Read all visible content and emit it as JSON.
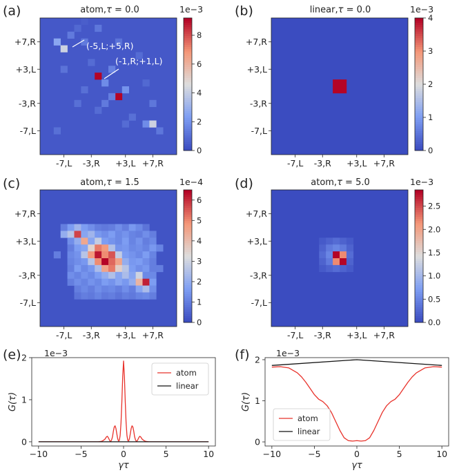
{
  "panels": {
    "a": {
      "label": "(a)",
      "title_prefix": "atom,",
      "tau_symbol": "τ",
      "title_value": " = 0.0",
      "exponent": "1e−3"
    },
    "b": {
      "label": "(b)",
      "title_prefix": "linear,",
      "tau_symbol": "τ",
      "title_value": " = 0.0",
      "exponent": "1e−3"
    },
    "c": {
      "label": "(c)",
      "title_prefix": "atom,",
      "tau_symbol": "τ",
      "title_value": " = 1.5",
      "exponent": "1e−4"
    },
    "d": {
      "label": "(d)",
      "title_prefix": "atom,",
      "tau_symbol": "τ",
      "title_value": " = 5.0",
      "exponent": "1e−3"
    },
    "e": {
      "label": "(e)",
      "exponent": "1e−3"
    },
    "f": {
      "label": "(f)",
      "exponent": "1e−3"
    }
  },
  "annotations": {
    "a1": "(-5,L;+5,R)",
    "a2": "(-1,R;+1,L)"
  },
  "heatmap_ticks": {
    "x": [
      "-7,L",
      "-3,R",
      "+3,L",
      "+7,R"
    ],
    "y": [
      "+7,R",
      "+3,L",
      "-3,R",
      "-7,L"
    ]
  },
  "colorbar_ticks": {
    "a": [
      "0",
      "2",
      "4",
      "6",
      "8"
    ],
    "b": [
      "0",
      "1",
      "2",
      "3",
      "4"
    ],
    "c": [
      "0",
      "1",
      "2",
      "3",
      "4",
      "5",
      "6"
    ],
    "d": [
      "0.0",
      "0.5",
      "1.0",
      "1.5",
      "2.0",
      "2.5"
    ]
  },
  "line_axes": {
    "x_ticks": [
      "−10",
      "−5",
      "0",
      "5",
      "10"
    ],
    "y_ticks_e": [
      "0",
      "1",
      "2"
    ],
    "y_ticks_f": [
      "0",
      "1",
      "2"
    ],
    "xlabel": "γτ",
    "ylabel": "G(τ)"
  },
  "legend": {
    "atom": "atom",
    "linear": "linear"
  },
  "colors": {
    "atom_line": "#e8312a",
    "linear_line": "#111111",
    "cmap_low": "#3b4cc0",
    "cmap_mid": "#dddddd",
    "cmap_high": "#b40426"
  },
  "chart_data": [
    {
      "type": "heatmap",
      "panel": "a",
      "title": "atom, τ = 0.0",
      "grid": 20,
      "vmin": 0,
      "vmax": 9.2,
      "scale_exponent": -3,
      "background": 0.35,
      "cells": [
        [
          6,
          0,
          0.5
        ],
        [
          5,
          1,
          0.8
        ],
        [
          4,
          2,
          1.3
        ],
        [
          8,
          1,
          1.2
        ],
        [
          2,
          3,
          2.6
        ],
        [
          3,
          4,
          4.2
        ],
        [
          6,
          3,
          1.3
        ],
        [
          11,
          3,
          1.1
        ],
        [
          7,
          6,
          0.9
        ],
        [
          8,
          8,
          9.2
        ],
        [
          9,
          9,
          1.8
        ],
        [
          10,
          7,
          1.5
        ],
        [
          11,
          11,
          9.2
        ],
        [
          10,
          11,
          1.4
        ],
        [
          12,
          10,
          2.0
        ],
        [
          9,
          12,
          1.3
        ],
        [
          6,
          10,
          1.0
        ],
        [
          13,
          14,
          1.0
        ],
        [
          12,
          15,
          0.9
        ],
        [
          15,
          15,
          1.8
        ],
        [
          16,
          15,
          4.2
        ],
        [
          17,
          16,
          1.2
        ],
        [
          2,
          16,
          1.0
        ],
        [
          16,
          12,
          1.2
        ],
        [
          3,
          7,
          1.1
        ],
        [
          14,
          5,
          0.9
        ],
        [
          8,
          13,
          0.9
        ],
        [
          5,
          12,
          1.0
        ],
        [
          15,
          9,
          0.8
        ]
      ]
    },
    {
      "type": "heatmap",
      "panel": "b",
      "title": "linear, τ = 0.0",
      "grid": 20,
      "vmin": 0,
      "vmax": 4.0,
      "scale_exponent": -3,
      "background": 0.0,
      "cells": [
        [
          9,
          9,
          4.0
        ],
        [
          10,
          9,
          4.0
        ],
        [
          9,
          10,
          4.0
        ],
        [
          10,
          10,
          4.0
        ]
      ]
    },
    {
      "type": "heatmap",
      "panel": "c",
      "title": "atom, τ = 1.5",
      "grid": 20,
      "vmin": 0,
      "vmax": 6.5,
      "scale_exponent": -4,
      "background": 0.15,
      "cells": [
        [
          3,
          5,
          1.0
        ],
        [
          4,
          5,
          1.6
        ],
        [
          5,
          5,
          2.2
        ],
        [
          6,
          5,
          1.6
        ],
        [
          7,
          5,
          1.3
        ],
        [
          8,
          5,
          1.0
        ],
        [
          9,
          5,
          0.9
        ],
        [
          10,
          5,
          1.0
        ],
        [
          11,
          5,
          1.3
        ],
        [
          12,
          5,
          1.0
        ],
        [
          13,
          5,
          1.5
        ],
        [
          14,
          5,
          1.2
        ],
        [
          15,
          5,
          0.8
        ],
        [
          3,
          6,
          2.0
        ],
        [
          4,
          6,
          2.6
        ],
        [
          5,
          6,
          5.8
        ],
        [
          6,
          6,
          1.8
        ],
        [
          7,
          6,
          2.2
        ],
        [
          8,
          6,
          1.5
        ],
        [
          9,
          6,
          1.3
        ],
        [
          10,
          6,
          1.6
        ],
        [
          11,
          6,
          1.2
        ],
        [
          12,
          6,
          1.4
        ],
        [
          13,
          6,
          1.1
        ],
        [
          14,
          6,
          1.0
        ],
        [
          15,
          6,
          1.3
        ],
        [
          16,
          6,
          1.0
        ],
        [
          4,
          7,
          1.3
        ],
        [
          5,
          7,
          2.0
        ],
        [
          6,
          7,
          4.5
        ],
        [
          7,
          7,
          1.8
        ],
        [
          8,
          7,
          2.8
        ],
        [
          9,
          7,
          1.6
        ],
        [
          10,
          7,
          1.4
        ],
        [
          11,
          7,
          1.2
        ],
        [
          12,
          7,
          1.6
        ],
        [
          13,
          7,
          1.1
        ],
        [
          14,
          7,
          1.4
        ],
        [
          15,
          7,
          1.0
        ],
        [
          16,
          7,
          1.2
        ],
        [
          4,
          8,
          1.0
        ],
        [
          5,
          8,
          1.6
        ],
        [
          6,
          8,
          1.8
        ],
        [
          7,
          8,
          3.5
        ],
        [
          8,
          8,
          5.2
        ],
        [
          9,
          8,
          4.8
        ],
        [
          10,
          8,
          2.5
        ],
        [
          11,
          8,
          1.4
        ],
        [
          12,
          8,
          1.5
        ],
        [
          13,
          8,
          1.2
        ],
        [
          14,
          8,
          1.3
        ],
        [
          15,
          8,
          1.1
        ],
        [
          16,
          8,
          1.5
        ],
        [
          4,
          9,
          1.2
        ],
        [
          5,
          9,
          1.4
        ],
        [
          6,
          9,
          2.6
        ],
        [
          7,
          9,
          4.8
        ],
        [
          8,
          9,
          6.3
        ],
        [
          9,
          9,
          5.0
        ],
        [
          10,
          9,
          5.6
        ],
        [
          11,
          9,
          2.8
        ],
        [
          12,
          9,
          1.6
        ],
        [
          13,
          9,
          1.4
        ],
        [
          14,
          9,
          1.2
        ],
        [
          15,
          9,
          1.6
        ],
        [
          16,
          9,
          1.1
        ],
        [
          4,
          10,
          1.1
        ],
        [
          5,
          10,
          1.3
        ],
        [
          6,
          10,
          1.5
        ],
        [
          7,
          10,
          2.6
        ],
        [
          8,
          10,
          5.0
        ],
        [
          9,
          10,
          6.5
        ],
        [
          10,
          10,
          5.4
        ],
        [
          11,
          10,
          4.6
        ],
        [
          12,
          10,
          2.0
        ],
        [
          13,
          10,
          1.5
        ],
        [
          14,
          10,
          1.6
        ],
        [
          15,
          10,
          1.3
        ],
        [
          16,
          10,
          1.0
        ],
        [
          4,
          11,
          1.0
        ],
        [
          5,
          11,
          1.6
        ],
        [
          6,
          11,
          1.2
        ],
        [
          7,
          11,
          1.5
        ],
        [
          8,
          11,
          2.4
        ],
        [
          9,
          11,
          4.6
        ],
        [
          10,
          11,
          5.2
        ],
        [
          11,
          11,
          3.6
        ],
        [
          12,
          11,
          2.6
        ],
        [
          13,
          11,
          1.6
        ],
        [
          14,
          11,
          1.3
        ],
        [
          15,
          11,
          1.5
        ],
        [
          16,
          11,
          1.0
        ],
        [
          4,
          12,
          1.3
        ],
        [
          5,
          12,
          1.1
        ],
        [
          6,
          12,
          1.4
        ],
        [
          7,
          12,
          1.2
        ],
        [
          8,
          12,
          1.6
        ],
        [
          9,
          12,
          2.0
        ],
        [
          10,
          12,
          2.5
        ],
        [
          11,
          12,
          1.8
        ],
        [
          12,
          12,
          2.4
        ],
        [
          13,
          12,
          1.8
        ],
        [
          14,
          12,
          3.0
        ],
        [
          15,
          12,
          1.2
        ],
        [
          16,
          12,
          1.2
        ],
        [
          4,
          13,
          1.0
        ],
        [
          5,
          13,
          1.3
        ],
        [
          6,
          13,
          1.1
        ],
        [
          7,
          13,
          1.4
        ],
        [
          8,
          13,
          1.2
        ],
        [
          9,
          13,
          1.6
        ],
        [
          10,
          13,
          1.4
        ],
        [
          11,
          13,
          1.8
        ],
        [
          12,
          13,
          1.5
        ],
        [
          13,
          13,
          2.0
        ],
        [
          14,
          13,
          4.2
        ],
        [
          15,
          13,
          6.2
        ],
        [
          16,
          13,
          1.6
        ],
        [
          5,
          14,
          1.0
        ],
        [
          6,
          14,
          1.2
        ],
        [
          7,
          14,
          1.0
        ],
        [
          8,
          14,
          1.3
        ],
        [
          9,
          14,
          1.1
        ],
        [
          10,
          14,
          1.2
        ],
        [
          11,
          14,
          1.0
        ],
        [
          12,
          14,
          1.3
        ],
        [
          13,
          14,
          1.0
        ],
        [
          14,
          14,
          1.8
        ],
        [
          15,
          14,
          2.4
        ],
        [
          16,
          14,
          1.3
        ],
        [
          5,
          15,
          0.8
        ],
        [
          6,
          15,
          1.0
        ],
        [
          7,
          15,
          0.9
        ],
        [
          8,
          15,
          1.1
        ],
        [
          9,
          15,
          0.9
        ],
        [
          10,
          15,
          1.0
        ],
        [
          11,
          15,
          0.8
        ],
        [
          12,
          15,
          1.0
        ],
        [
          13,
          15,
          0.9
        ],
        [
          14,
          15,
          1.1
        ],
        [
          15,
          15,
          1.2
        ],
        [
          16,
          15,
          1.0
        ],
        [
          17,
          11,
          1.0
        ],
        [
          17,
          8,
          1.1
        ],
        [
          2,
          9,
          1.0
        ]
      ]
    },
    {
      "type": "heatmap",
      "panel": "d",
      "title": "atom, τ = 5.0",
      "grid": 20,
      "vmin": 0,
      "vmax": 2.85,
      "scale_exponent": -3,
      "background": 0.0,
      "cells": [
        [
          7,
          7,
          0.12
        ],
        [
          8,
          7,
          0.2
        ],
        [
          9,
          7,
          0.28
        ],
        [
          10,
          7,
          0.2
        ],
        [
          11,
          7,
          0.12
        ],
        [
          7,
          8,
          0.2
        ],
        [
          8,
          8,
          0.4
        ],
        [
          9,
          8,
          0.5
        ],
        [
          10,
          8,
          0.4
        ],
        [
          11,
          8,
          0.2
        ],
        [
          7,
          9,
          0.28
        ],
        [
          8,
          9,
          0.5
        ],
        [
          9,
          9,
          2.85
        ],
        [
          10,
          9,
          2.2
        ],
        [
          11,
          9,
          0.28
        ],
        [
          7,
          10,
          0.2
        ],
        [
          8,
          10,
          0.4
        ],
        [
          9,
          10,
          2.2
        ],
        [
          10,
          10,
          2.85
        ],
        [
          11,
          10,
          0.2
        ],
        [
          7,
          11,
          0.12
        ],
        [
          8,
          11,
          0.2
        ],
        [
          9,
          11,
          0.28
        ],
        [
          10,
          11,
          0.2
        ],
        [
          11,
          11,
          0.12
        ]
      ]
    },
    {
      "type": "line",
      "panel": "e",
      "xlabel": "γτ",
      "ylabel": "G(τ)",
      "xlim": [
        -10.8,
        10.8
      ],
      "ylim": [
        -0.1,
        2.0
      ],
      "scale_exponent": -3,
      "series": [
        {
          "name": "atom",
          "x": [
            -10,
            -3,
            -2.6,
            -2.4,
            -2.2,
            -2.1,
            -2.0,
            -1.9,
            -1.8,
            -1.7,
            -1.6,
            -1.5,
            -1.4,
            -1.3,
            -1.2,
            -1.1,
            -1.0,
            -0.9,
            -0.8,
            -0.7,
            -0.6,
            -0.5,
            -0.4,
            -0.3,
            -0.2,
            -0.1,
            0,
            0.1,
            0.2,
            0.3,
            0.4,
            0.5,
            0.6,
            0.7,
            0.8,
            0.9,
            1.0,
            1.1,
            1.2,
            1.3,
            1.4,
            1.5,
            1.6,
            1.7,
            1.8,
            1.9,
            2.0,
            2.1,
            2.2,
            2.4,
            2.6,
            3,
            10
          ],
          "y": [
            0,
            0,
            0.01,
            0.03,
            0.06,
            0.09,
            0.12,
            0.13,
            0.1,
            0.06,
            0.02,
            0.01,
            0.05,
            0.12,
            0.25,
            0.35,
            0.38,
            0.32,
            0.2,
            0.08,
            0.02,
            0.03,
            0.15,
            0.45,
            0.95,
            1.55,
            1.92,
            1.55,
            0.95,
            0.45,
            0.15,
            0.03,
            0.02,
            0.08,
            0.2,
            0.32,
            0.38,
            0.35,
            0.25,
            0.12,
            0.05,
            0.01,
            0.02,
            0.06,
            0.1,
            0.13,
            0.12,
            0.09,
            0.06,
            0.03,
            0.01,
            0,
            0
          ]
        },
        {
          "name": "linear",
          "x": [
            -10,
            10
          ],
          "y": [
            0.0,
            0.0
          ]
        }
      ]
    },
    {
      "type": "line",
      "panel": "f",
      "xlabel": "γτ",
      "ylabel": "G(τ)",
      "xlim": [
        -10.8,
        10.8
      ],
      "ylim": [
        -0.1,
        2.05
      ],
      "scale_exponent": -3,
      "series": [
        {
          "name": "atom",
          "x": [
            -10,
            -9,
            -8,
            -7,
            -6.5,
            -6,
            -5.5,
            -5,
            -4.5,
            -4,
            -3.5,
            -3,
            -2.5,
            -2,
            -1.5,
            -1,
            -0.5,
            0,
            0.5,
            1,
            1.5,
            2,
            2.5,
            3,
            3.5,
            4,
            4.5,
            5,
            5.5,
            6,
            6.5,
            7,
            8,
            9,
            10
          ],
          "y": [
            1.82,
            1.83,
            1.8,
            1.68,
            1.58,
            1.45,
            1.3,
            1.15,
            1.04,
            0.98,
            0.88,
            0.72,
            0.5,
            0.28,
            0.1,
            0.03,
            0.02,
            0.03,
            0.02,
            0.03,
            0.1,
            0.28,
            0.5,
            0.72,
            0.88,
            0.98,
            1.04,
            1.15,
            1.3,
            1.45,
            1.58,
            1.68,
            1.8,
            1.83,
            1.82
          ]
        },
        {
          "name": "linear",
          "x": [
            -10,
            0,
            10
          ],
          "y": [
            1.86,
            2.0,
            1.86
          ]
        }
      ]
    }
  ]
}
